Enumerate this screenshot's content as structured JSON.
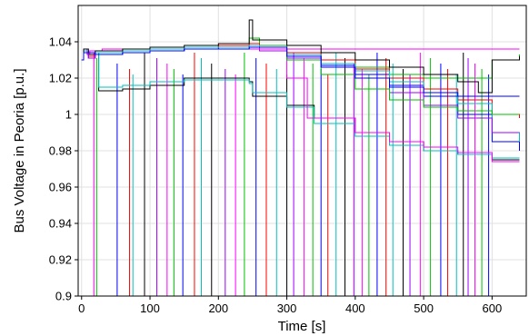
{
  "chart_data": {
    "type": "line",
    "title": "",
    "xlabel": "Time [s]",
    "ylabel": "Bus Voltage in Peoria [p.u.]",
    "xlim": [
      -5,
      650
    ],
    "ylim": [
      0.9,
      1.06
    ],
    "xticks": [
      0,
      100,
      200,
      300,
      400,
      500,
      600
    ],
    "yticks": [
      0.9,
      0.92,
      0.94,
      0.96,
      0.98,
      1.0,
      1.02,
      1.04
    ],
    "ytick_labels": [
      "0.9",
      "0.92",
      "0.94",
      "0.96",
      "0.98",
      "1",
      "1.02",
      "1.04"
    ],
    "grid": true,
    "legend": "none",
    "colors": [
      "#ff00ff",
      "#00c000",
      "#0000ff",
      "#ff0000",
      "#00c0c0",
      "#000000",
      "#a000ff"
    ],
    "series": [
      {
        "color": "#ff00ff",
        "x": [
          0,
          3,
          8,
          12,
          20,
          30,
          60,
          100,
          150,
          200,
          240,
          245,
          255,
          300,
          350,
          400,
          450,
          500,
          550,
          600,
          640
        ],
        "y": [
          1.03,
          1.036,
          1.033,
          1.035,
          1.035,
          1.036,
          1.036,
          1.036,
          1.036,
          1.036,
          1.036,
          1.036,
          1.036,
          1.036,
          1.036,
          1.036,
          1.036,
          1.036,
          1.036,
          1.036,
          1.036
        ]
      },
      {
        "color": "#00c000",
        "x": [
          0,
          3,
          10,
          20,
          60,
          100,
          150,
          200,
          240,
          245,
          260,
          300,
          350,
          400,
          450,
          500,
          550,
          600,
          640
        ],
        "y": [
          1.03,
          1.035,
          1.032,
          1.034,
          1.035,
          1.036,
          1.037,
          1.038,
          1.038,
          1.042,
          1.038,
          1.034,
          1.03,
          1.026,
          1.022,
          1.02,
          1.02,
          1.03,
          1.033
        ]
      },
      {
        "color": "#0000ff",
        "x": [
          0,
          3,
          10,
          20,
          60,
          100,
          150,
          200,
          245,
          260,
          300,
          350,
          400,
          450,
          500,
          550,
          600,
          640
        ],
        "y": [
          1.03,
          1.034,
          1.031,
          1.033,
          1.034,
          1.035,
          1.036,
          1.037,
          1.038,
          1.036,
          1.032,
          1.027,
          1.022,
          1.016,
          1.01,
          1.0,
          0.985,
          0.98
        ]
      },
      {
        "color": "#ff0000",
        "x": [
          0,
          3,
          10,
          20,
          60,
          100,
          150,
          200,
          245,
          260,
          300,
          350,
          400,
          450,
          500,
          550,
          600,
          640
        ],
        "y": [
          1.03,
          1.035,
          1.032,
          1.034,
          1.035,
          1.036,
          1.037,
          1.038,
          1.039,
          1.037,
          1.034,
          1.03,
          1.025,
          1.02,
          1.014,
          1.008,
          1.0,
          0.998
        ]
      },
      {
        "color": "#00c0c0",
        "x": [
          0,
          3,
          10,
          20,
          60,
          100,
          150,
          200,
          245,
          260,
          300,
          350,
          400,
          450,
          500,
          550,
          600,
          640
        ],
        "y": [
          1.03,
          1.035,
          1.033,
          1.034,
          1.035,
          1.036,
          1.037,
          1.037,
          1.038,
          1.036,
          1.033,
          1.028,
          1.024,
          1.018,
          1.012,
          1.006,
          0.99,
          0.985
        ]
      },
      {
        "color": "#000000",
        "x": [
          0,
          3,
          10,
          20,
          60,
          100,
          150,
          200,
          240,
          245,
          250,
          300,
          350,
          400,
          450,
          500,
          550,
          580,
          600,
          640
        ],
        "y": [
          1.03,
          1.036,
          1.033,
          1.035,
          1.036,
          1.037,
          1.038,
          1.039,
          1.039,
          1.052,
          1.041,
          1.038,
          1.034,
          1.03,
          1.026,
          1.022,
          1.018,
          1.012,
          1.03,
          1.032
        ]
      },
      {
        "color": "#a000ff",
        "x": [
          0,
          3,
          10,
          20,
          60,
          100,
          150,
          200,
          245,
          260,
          300,
          350,
          400,
          450,
          500,
          550,
          600,
          640
        ],
        "y": [
          1.03,
          1.034,
          1.031,
          1.033,
          1.034,
          1.035,
          1.036,
          1.036,
          1.037,
          1.035,
          1.031,
          1.026,
          1.02,
          1.012,
          1.005,
          0.998,
          0.99,
          0.99
        ]
      },
      {
        "color": "#000000",
        "x": [
          0,
          3,
          20,
          25,
          60,
          100,
          150,
          200,
          245,
          250,
          300,
          340,
          400,
          450,
          500,
          550,
          600,
          640
        ],
        "y": [
          1.03,
          1.034,
          1.034,
          1.013,
          1.014,
          1.016,
          1.02,
          1.02,
          1.018,
          1.01,
          1.005,
          0.998,
          0.99,
          0.985,
          0.98,
          0.978,
          0.975,
          0.975
        ]
      },
      {
        "color": "#00c0c0",
        "x": [
          0,
          3,
          20,
          25,
          60,
          100,
          150,
          200,
          245,
          250,
          300,
          340,
          400,
          450,
          500,
          550,
          600,
          640
        ],
        "y": [
          1.03,
          1.034,
          1.034,
          1.015,
          1.016,
          1.018,
          1.019,
          1.019,
          1.017,
          1.012,
          1.004,
          0.995,
          0.988,
          0.983,
          0.98,
          0.978,
          0.976,
          0.976
        ]
      },
      {
        "color": "#ff00ff",
        "x": [
          0,
          3,
          20,
          60,
          100,
          150,
          200,
          245,
          300,
          330,
          400,
          450,
          500,
          550,
          600,
          640
        ],
        "y": [
          1.03,
          1.034,
          1.033,
          1.034,
          1.035,
          1.036,
          1.036,
          1.036,
          1.02,
          0.998,
          0.99,
          0.985,
          0.982,
          0.979,
          0.974,
          0.974
        ]
      },
      {
        "color": "#00c000",
        "x": [
          0,
          3,
          20,
          60,
          100,
          150,
          200,
          245,
          300,
          350,
          400,
          450,
          500,
          550,
          600,
          640
        ],
        "y": [
          1.03,
          1.034,
          1.033,
          1.034,
          1.035,
          1.036,
          1.036,
          1.037,
          1.03,
          1.022,
          1.014,
          1.008,
          1.004,
          1.002,
          1.0,
          1.0
        ]
      },
      {
        "color": "#0000ff",
        "x": [
          0,
          3,
          20,
          60,
          100,
          150,
          200,
          245,
          300,
          350,
          400,
          450,
          500,
          550,
          600,
          640
        ],
        "y": [
          1.03,
          1.034,
          1.033,
          1.034,
          1.035,
          1.036,
          1.036,
          1.037,
          1.032,
          1.026,
          1.02,
          1.015,
          1.012,
          1.01,
          1.01,
          1.01
        ]
      }
    ],
    "drop_times": [
      18,
      22,
      52,
      70,
      75,
      92,
      110,
      125,
      135,
      148,
      165,
      175,
      190,
      210,
      225,
      238,
      255,
      270,
      285,
      300,
      310,
      325,
      338,
      350,
      360,
      372,
      385,
      398,
      410,
      420,
      432,
      445,
      455,
      470,
      480,
      495,
      510,
      525,
      535,
      548,
      558,
      565,
      575,
      585,
      595
    ]
  }
}
